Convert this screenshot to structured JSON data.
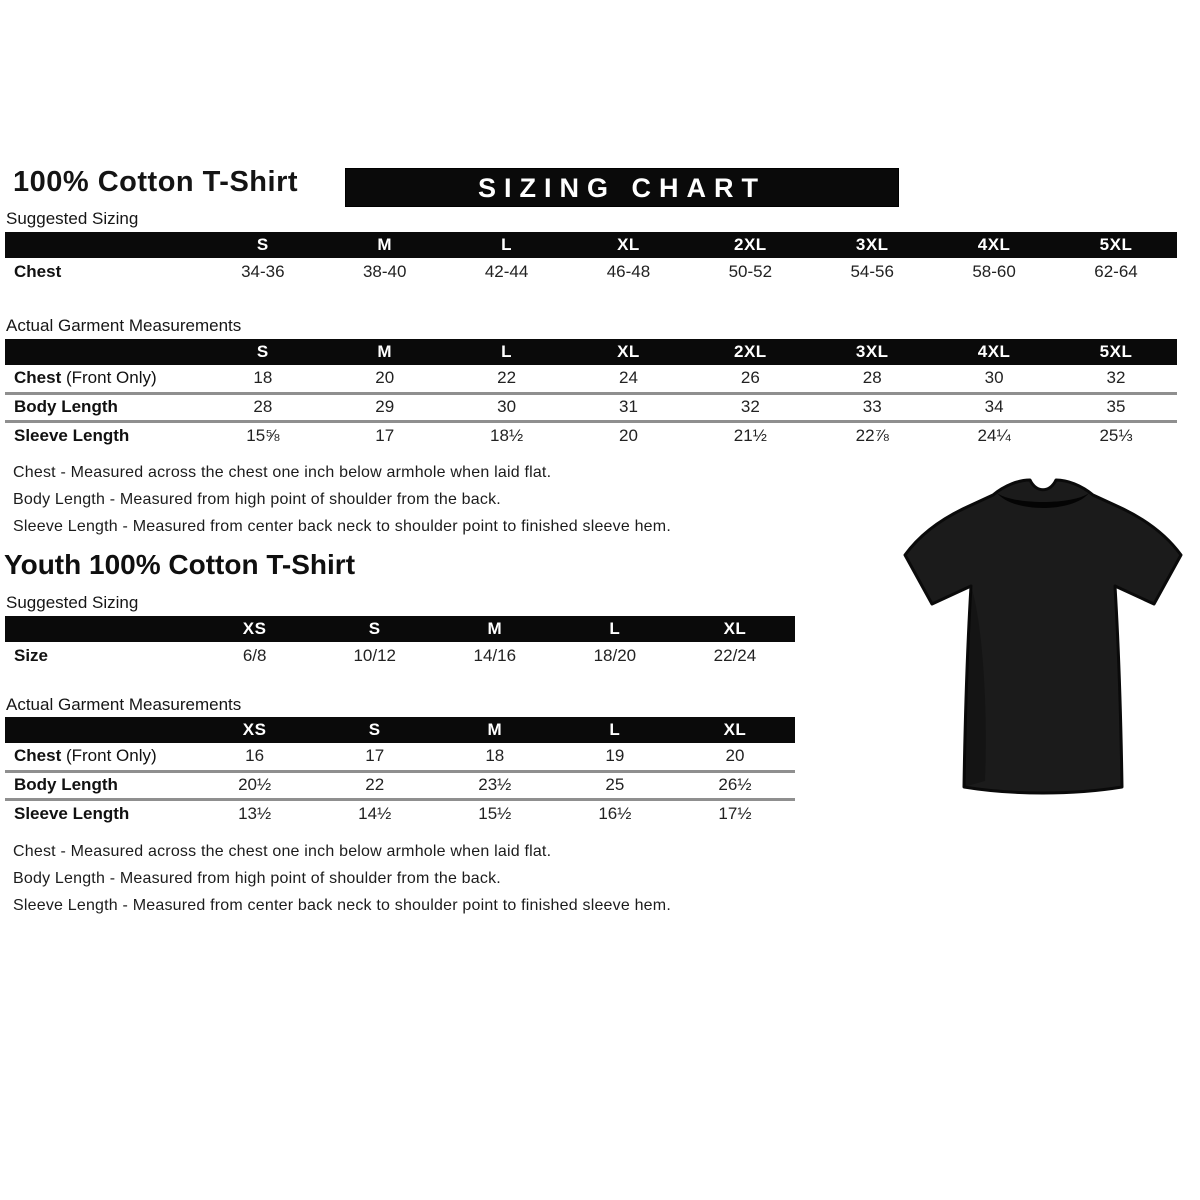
{
  "banner": "SIZING CHART",
  "adult": {
    "title": "100% Cotton T-Shirt",
    "suggested": {
      "label": "Suggested Sizing",
      "columns": [
        "S",
        "M",
        "L",
        "XL",
        "2XL",
        "3XL",
        "4XL",
        "5XL"
      ],
      "rows": [
        {
          "label": "Chest",
          "suffix": "",
          "values": [
            "34-36",
            "38-40",
            "42-44",
            "46-48",
            "50-52",
            "54-56",
            "58-60",
            "62-64"
          ]
        }
      ]
    },
    "actual": {
      "label": "Actual Garment Measurements",
      "columns": [
        "S",
        "M",
        "L",
        "XL",
        "2XL",
        "3XL",
        "4XL",
        "5XL"
      ],
      "rows": [
        {
          "label": "Chest",
          "suffix": "(Front Only)",
          "values": [
            "18",
            "20",
            "22",
            "24",
            "26",
            "28",
            "30",
            "32"
          ]
        },
        {
          "label": "Body Length",
          "suffix": "",
          "values": [
            "28",
            "29",
            "30",
            "31",
            "32",
            "33",
            "34",
            "35"
          ]
        },
        {
          "label": "Sleeve Length",
          "suffix": "",
          "values": [
            "15⅝",
            "17",
            "18½",
            "20",
            "21½",
            "22⅞",
            "24¼",
            "25⅓"
          ]
        }
      ]
    },
    "notes": [
      "Chest - Measured across the chest one inch below armhole when laid flat.",
      "Body Length - Measured from high point of shoulder from the back.",
      "Sleeve Length - Measured from center back neck to shoulder point to finished sleeve hem."
    ]
  },
  "youth": {
    "title": "Youth 100% Cotton T-Shirt",
    "suggested": {
      "label": "Suggested Sizing",
      "columns": [
        "XS",
        "S",
        "M",
        "L",
        "XL"
      ],
      "rows": [
        {
          "label": "Size",
          "suffix": "",
          "values": [
            "6/8",
            "10/12",
            "14/16",
            "18/20",
            "22/24"
          ]
        }
      ]
    },
    "actual": {
      "label": "Actual Garment Measurements",
      "columns": [
        "XS",
        "S",
        "M",
        "L",
        "XL"
      ],
      "rows": [
        {
          "label": "Chest",
          "suffix": "(Front Only)",
          "values": [
            "16",
            "17",
            "18",
            "19",
            "20"
          ]
        },
        {
          "label": "Body Length",
          "suffix": "",
          "values": [
            "20½",
            "22",
            "23½",
            "25",
            "26½"
          ]
        },
        {
          "label": "Sleeve Length",
          "suffix": "",
          "values": [
            "13½",
            "14½",
            "15½",
            "16½",
            "17½"
          ]
        }
      ]
    },
    "notes": [
      "Chest - Measured across the chest one inch below armhole when laid flat.",
      "Body Length - Measured from high point of shoulder from the back.",
      "Sleeve Length - Measured from center back neck to shoulder point to finished sleeve hem."
    ]
  },
  "tshirt": {
    "color": "#1b1b1b",
    "name": "black short-sleeve t-shirt"
  }
}
